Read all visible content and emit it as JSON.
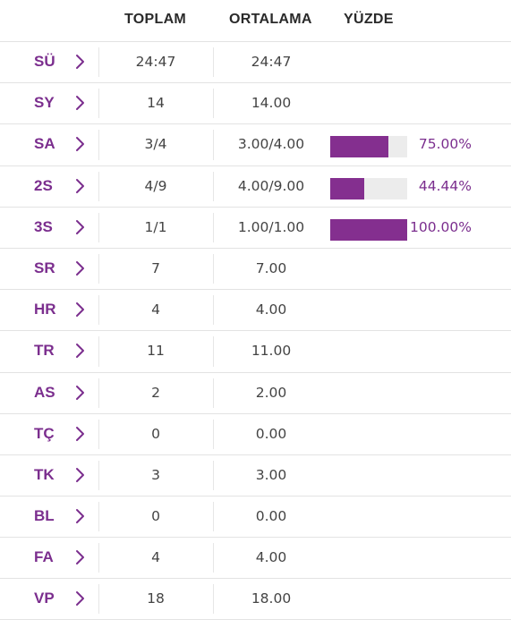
{
  "header": {
    "total_label": "TOPLAM",
    "average_label": "ORTALAMA",
    "percent_label": "YÜZDE"
  },
  "colors": {
    "accent": "#7b2e8e",
    "bar_fill": "#842f8f",
    "bar_track": "#ececec"
  },
  "rows": [
    {
      "abbr": "SÜ",
      "total": "24:47",
      "average": "24:47"
    },
    {
      "abbr": "SY",
      "total": "14",
      "average": "14.00"
    },
    {
      "abbr": "SA",
      "total": "3/4",
      "average": "3.00/4.00",
      "percent": "75.00%",
      "fill": 0.75
    },
    {
      "abbr": "2S",
      "total": "4/9",
      "average": "4.00/9.00",
      "percent": "44.44%",
      "fill": 0.4444
    },
    {
      "abbr": "3S",
      "total": "1/1",
      "average": "1.00/1.00",
      "percent": "100.00%",
      "fill": 1.0
    },
    {
      "abbr": "SR",
      "total": "7",
      "average": "7.00"
    },
    {
      "abbr": "HR",
      "total": "4",
      "average": "4.00"
    },
    {
      "abbr": "TR",
      "total": "11",
      "average": "11.00"
    },
    {
      "abbr": "AS",
      "total": "2",
      "average": "2.00"
    },
    {
      "abbr": "TÇ",
      "total": "0",
      "average": "0.00"
    },
    {
      "abbr": "TK",
      "total": "3",
      "average": "3.00"
    },
    {
      "abbr": "BL",
      "total": "0",
      "average": "0.00"
    },
    {
      "abbr": "FA",
      "total": "4",
      "average": "4.00"
    },
    {
      "abbr": "VP",
      "total": "18",
      "average": "18.00"
    }
  ]
}
